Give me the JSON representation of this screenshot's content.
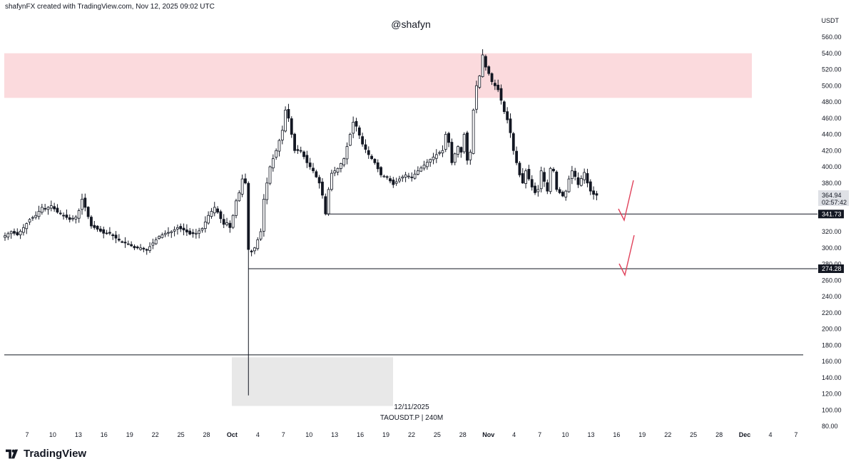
{
  "header": {
    "credit": "shafynFX created with TradingView.com, Nov 12, 2025 09:02 UTC"
  },
  "watermark": "@shafyn",
  "footer": {
    "brand": "TradingView",
    "brand_icon": "tradingview-logo-icon"
  },
  "colors": {
    "candle": "#131722",
    "supply_zone": "#fbdadd",
    "liquidity_zone": "#e8e8e8",
    "arrow": "#e0415a",
    "level_line": "#131722",
    "current_price_bg": "#dfe1e6"
  },
  "chart_data": {
    "type": "candlestick",
    "symbol_caption": "TAOUSDT.P | 240M",
    "date_caption": "12/11/2025",
    "currency_label": "USDT",
    "ylim": [
      80,
      565
    ],
    "y_ticks": [
      "560.00",
      "540.00",
      "520.00",
      "500.00",
      "480.00",
      "460.00",
      "440.00",
      "420.00",
      "400.00",
      "380.00",
      "360.00",
      "340.00",
      "320.00",
      "300.00",
      "280.00",
      "260.00",
      "240.00",
      "220.00",
      "200.00",
      "180.00",
      "160.00",
      "140.00",
      "120.00",
      "100.00",
      "80.00"
    ],
    "x_ticks": [
      "7",
      "10",
      "13",
      "16",
      "19",
      "22",
      "25",
      "28",
      "Oct",
      "4",
      "7",
      "10",
      "13",
      "16",
      "19",
      "22",
      "25",
      "28",
      "Nov",
      "4",
      "7",
      "10",
      "13",
      "16",
      "19",
      "22",
      "25",
      "28",
      "Dec",
      "4",
      "7"
    ],
    "bold_x_ticks": [
      "Oct",
      "Nov",
      "Dec"
    ],
    "current_price": {
      "value": "364.94",
      "countdown": "02:57:42"
    },
    "levels": [
      {
        "label": "341.73",
        "value": 341.73
      },
      {
        "label": "274.28",
        "value": 274.28
      }
    ],
    "horizontal_line": 168,
    "supply_zone": {
      "from": 485,
      "to": 540
    },
    "liquidity_zone": {
      "from": 105,
      "to": 165
    },
    "wick_low": 118,
    "price_path": [
      [
        0,
        315
      ],
      [
        2,
        320
      ],
      [
        4,
        316
      ],
      [
        6,
        325
      ],
      [
        8,
        335
      ],
      [
        10,
        340
      ],
      [
        12,
        350
      ],
      [
        13,
        348
      ],
      [
        15,
        352
      ],
      [
        17,
        344
      ],
      [
        19,
        340
      ],
      [
        21,
        335
      ],
      [
        23,
        338
      ],
      [
        24,
        346
      ],
      [
        25,
        360
      ],
      [
        26,
        350
      ],
      [
        28,
        327
      ],
      [
        30,
        323
      ],
      [
        32,
        318
      ],
      [
        34,
        318
      ],
      [
        36,
        312
      ],
      [
        38,
        307
      ],
      [
        40,
        305
      ],
      [
        42,
        300
      ],
      [
        44,
        300
      ],
      [
        46,
        297
      ],
      [
        48,
        306
      ],
      [
        50,
        314
      ],
      [
        52,
        318
      ],
      [
        54,
        320
      ],
      [
        56,
        325
      ],
      [
        58,
        322
      ],
      [
        60,
        317
      ],
      [
        62,
        318
      ],
      [
        64,
        324
      ],
      [
        66,
        340
      ],
      [
        68,
        350
      ],
      [
        69,
        344
      ],
      [
        70,
        336
      ],
      [
        71,
        329
      ],
      [
        72,
        331
      ],
      [
        73,
        325
      ],
      [
        74,
        340
      ],
      [
        75,
        358
      ],
      [
        76,
        368
      ],
      [
        77,
        385
      ],
      [
        78,
        380
      ],
      [
        79,
        298
      ],
      [
        80,
        295
      ],
      [
        81,
        300
      ],
      [
        82,
        310
      ],
      [
        83,
        320
      ],
      [
        84,
        360
      ],
      [
        85,
        380
      ],
      [
        86,
        400
      ],
      [
        88,
        420
      ],
      [
        90,
        445
      ],
      [
        91,
        470
      ],
      [
        92,
        460
      ],
      [
        93,
        440
      ],
      [
        94,
        420
      ],
      [
        96,
        420
      ],
      [
        98,
        405
      ],
      [
        100,
        395
      ],
      [
        102,
        380
      ],
      [
        103,
        365
      ],
      [
        104,
        342
      ],
      [
        105,
        372
      ],
      [
        106,
        392
      ],
      [
        108,
        398
      ],
      [
        110,
        410
      ],
      [
        112,
        440
      ],
      [
        113,
        455
      ],
      [
        114,
        450
      ],
      [
        116,
        428
      ],
      [
        118,
        415
      ],
      [
        120,
        405
      ],
      [
        122,
        390
      ],
      [
        124,
        387
      ],
      [
        126,
        378
      ],
      [
        128,
        385
      ],
      [
        130,
        390
      ],
      [
        132,
        387
      ],
      [
        134,
        395
      ],
      [
        136,
        402
      ],
      [
        138,
        409
      ],
      [
        140,
        415
      ],
      [
        142,
        420
      ],
      [
        143,
        440
      ],
      [
        144,
        430
      ],
      [
        145,
        405
      ],
      [
        146,
        416
      ],
      [
        147,
        425
      ],
      [
        148,
        418
      ],
      [
        149,
        440
      ],
      [
        150,
        408
      ],
      [
        151,
        418
      ],
      [
        152,
        470
      ],
      [
        153,
        500
      ],
      [
        154,
        512
      ],
      [
        155,
        538
      ],
      [
        156,
        523
      ],
      [
        157,
        515
      ],
      [
        158,
        505
      ],
      [
        160,
        495
      ],
      [
        161,
        482
      ],
      [
        162,
        468
      ],
      [
        163,
        458
      ],
      [
        164,
        442
      ],
      [
        165,
        420
      ],
      [
        166,
        405
      ],
      [
        167,
        390
      ],
      [
        168,
        380
      ],
      [
        169,
        395
      ],
      [
        170,
        385
      ],
      [
        171,
        375
      ],
      [
        172,
        368
      ],
      [
        173,
        372
      ],
      [
        174,
        395
      ],
      [
        175,
        382
      ],
      [
        176,
        370
      ],
      [
        177,
        398
      ],
      [
        178,
        395
      ],
      [
        179,
        372
      ],
      [
        180,
        368
      ],
      [
        181,
        364
      ],
      [
        182,
        370
      ],
      [
        183,
        385
      ],
      [
        184,
        395
      ],
      [
        185,
        388
      ],
      [
        186,
        378
      ],
      [
        188,
        393
      ],
      [
        189,
        380
      ],
      [
        190,
        370
      ],
      [
        191,
        366
      ],
      [
        192,
        364.94
      ]
    ]
  }
}
